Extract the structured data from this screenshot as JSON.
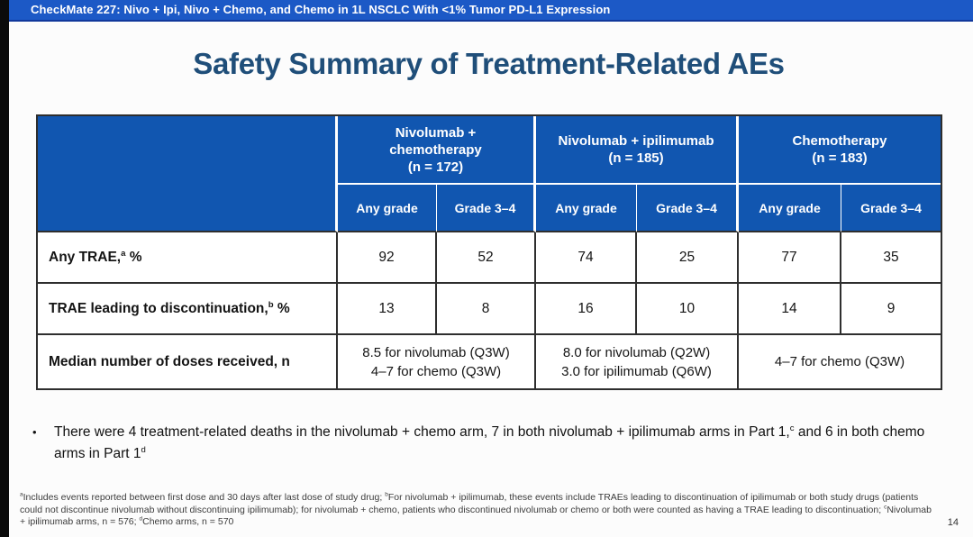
{
  "top_bar": {
    "text": "CheckMate 227: Nivo + Ipi, Nivo + Chemo, and Chemo in 1L NSCLC With <1% Tumor PD-L1 Expression"
  },
  "title": "Safety Summary of Treatment-Related AEs",
  "table": {
    "groups": [
      {
        "name": "Nivolumab + chemotherapy",
        "n": "(n = 172)"
      },
      {
        "name": "Nivolumab + ipilimumab",
        "n": "(n = 185)"
      },
      {
        "name": "Chemotherapy",
        "n": "(n = 183)"
      }
    ],
    "sub_headers": [
      "Any grade",
      "Grade 3–4"
    ],
    "rows": [
      {
        "label_pre": "Any TRAE,",
        "label_sup": "a",
        "label_post": " %",
        "values": [
          "92",
          "52",
          "74",
          "25",
          "77",
          "35"
        ]
      },
      {
        "label_pre": "TRAE leading to discontinuation,",
        "label_sup": "b",
        "label_post": " %",
        "values": [
          "13",
          "8",
          "16",
          "10",
          "14",
          "9"
        ]
      }
    ],
    "doses_row": {
      "label": "Median number of doses received, n",
      "cells": [
        {
          "line1": "8.5 for nivolumab (Q3W)",
          "line2": "4–7 for chemo (Q3W)"
        },
        {
          "line1": "8.0 for nivolumab (Q2W)",
          "line2": "3.0 for ipilimumab (Q6W)"
        },
        {
          "line1": "4–7 for chemo (Q3W)",
          "line2": ""
        }
      ]
    }
  },
  "bullet": {
    "marker": "•",
    "text_pre": "There were 4 treatment-related deaths in the nivolumab + chemo arm, 7 in both nivolumab + ipilimumab arms in Part 1,",
    "sup1": "c",
    "text_mid": " and 6 in both chemo arms in Part 1",
    "sup2": "d"
  },
  "footnotes": {
    "sup_a": "a",
    "seg_a": "Includes events reported between first dose and 30 days after last dose of study drug; ",
    "sup_b": "b",
    "seg_b": "For nivolumab + ipilimumab, these events include TRAEs leading to discontinuation of ipilimumab or both study drugs (patients could not discontinue nivolumab without discontinuing ipilimumab); for nivolumab + chemo, patients who discontinued nivolumab or chemo or both were counted as having a TRAE leading to discontinuation; ",
    "sup_c": "c",
    "seg_c": "Nivolumab + ipilimumab arms, n = 576; ",
    "sup_d": "d",
    "seg_d": "Chemo arms, n = 570"
  },
  "page_number": "14",
  "colors": {
    "top_bar_bg": "#1c59c6",
    "table_header_bg": "#1156b0",
    "title_text": "#1f4e79",
    "table_border_dark": "#2e2e2e",
    "header_divider_white": "#ffffff",
    "left_stripe": "#0b0b0b",
    "footnote_text": "#3c3c3c"
  }
}
